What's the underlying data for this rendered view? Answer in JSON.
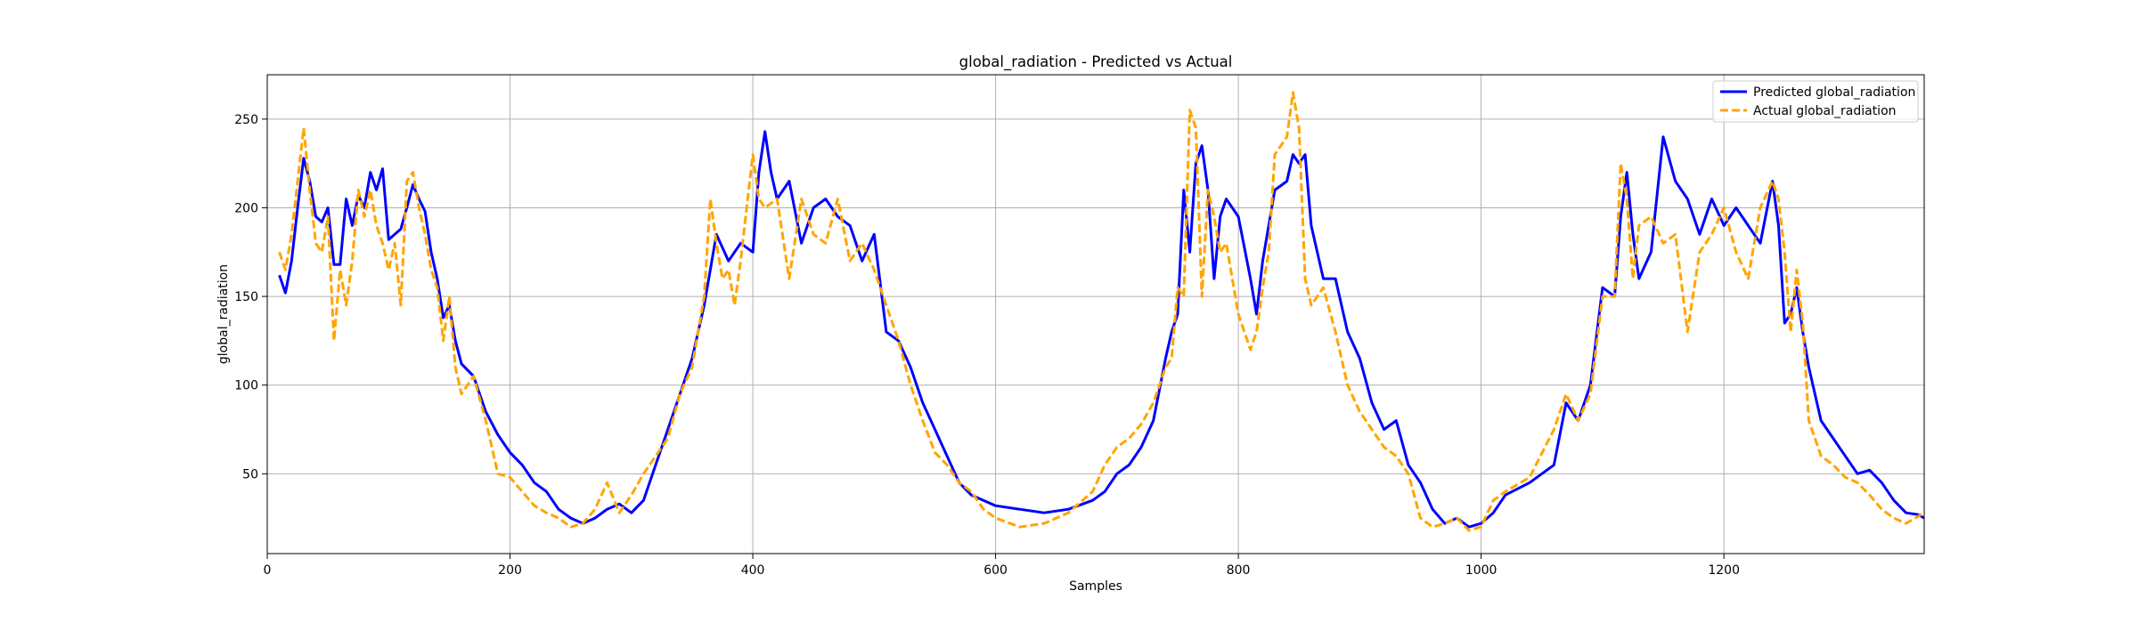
{
  "chart_data": {
    "type": "line",
    "title": "global_radiation - Predicted vs Actual",
    "xlabel": "Samples",
    "ylabel": "global_radiation",
    "xlim": [
      0,
      1365
    ],
    "ylim": [
      5,
      275
    ],
    "xticks": [
      0,
      200,
      400,
      600,
      800,
      1000,
      1200
    ],
    "yticks": [
      50,
      100,
      150,
      200,
      250
    ],
    "grid": true,
    "legend_position": "top-right",
    "series": [
      {
        "name": "Predicted global_radiation",
        "color": "#0000ff",
        "style": "solid",
        "x": [
          10,
          15,
          20,
          25,
          30,
          35,
          40,
          45,
          50,
          55,
          60,
          65,
          70,
          75,
          80,
          85,
          90,
          95,
          100,
          105,
          110,
          115,
          120,
          125,
          130,
          135,
          140,
          145,
          150,
          155,
          160,
          170,
          180,
          190,
          200,
          210,
          220,
          230,
          240,
          250,
          260,
          270,
          280,
          290,
          300,
          310,
          320,
          330,
          340,
          350,
          360,
          370,
          380,
          390,
          400,
          405,
          410,
          415,
          420,
          430,
          440,
          450,
          460,
          470,
          480,
          490,
          500,
          510,
          520,
          530,
          540,
          550,
          560,
          570,
          580,
          590,
          600,
          620,
          640,
          660,
          680,
          690,
          700,
          710,
          720,
          730,
          740,
          745,
          750,
          755,
          760,
          765,
          770,
          775,
          780,
          785,
          790,
          800,
          810,
          815,
          820,
          825,
          830,
          840,
          845,
          850,
          855,
          860,
          870,
          880,
          890,
          900,
          910,
          920,
          930,
          940,
          950,
          960,
          970,
          980,
          990,
          1000,
          1010,
          1020,
          1040,
          1060,
          1070,
          1080,
          1090,
          1100,
          1110,
          1115,
          1120,
          1125,
          1130,
          1140,
          1150,
          1160,
          1170,
          1180,
          1190,
          1200,
          1210,
          1220,
          1230,
          1240,
          1245,
          1250,
          1255,
          1260,
          1265,
          1270,
          1280,
          1290,
          1300,
          1310,
          1320,
          1330,
          1340,
          1350,
          1360,
          1365
        ],
        "y": [
          162,
          152,
          170,
          200,
          228,
          215,
          195,
          192,
          200,
          168,
          168,
          205,
          190,
          207,
          200,
          220,
          210,
          222,
          182,
          185,
          188,
          200,
          213,
          205,
          198,
          175,
          160,
          138,
          145,
          125,
          112,
          105,
          85,
          72,
          62,
          55,
          45,
          40,
          30,
          25,
          22,
          25,
          30,
          33,
          28,
          35,
          55,
          75,
          95,
          115,
          145,
          185,
          170,
          180,
          175,
          220,
          243,
          220,
          205,
          215,
          180,
          200,
          205,
          195,
          190,
          170,
          185,
          130,
          125,
          110,
          90,
          75,
          60,
          45,
          38,
          35,
          32,
          30,
          28,
          30,
          35,
          40,
          50,
          55,
          65,
          80,
          115,
          130,
          140,
          210,
          175,
          225,
          235,
          210,
          160,
          195,
          205,
          195,
          160,
          140,
          170,
          190,
          210,
          215,
          230,
          225,
          230,
          190,
          160,
          160,
          130,
          115,
          90,
          75,
          80,
          55,
          45,
          30,
          22,
          25,
          20,
          22,
          28,
          38,
          45,
          55,
          90,
          80,
          100,
          155,
          150,
          195,
          220,
          185,
          160,
          175,
          240,
          215,
          205,
          185,
          205,
          190,
          200,
          190,
          180,
          215,
          190,
          135,
          140,
          155,
          130,
          110,
          80,
          70,
          60,
          50,
          52,
          45,
          35,
          28,
          27,
          25
        ]
      },
      {
        "name": "Actual global_radiation",
        "color": "#ffa500",
        "style": "dashed",
        "x": [
          10,
          15,
          20,
          25,
          30,
          35,
          40,
          45,
          50,
          55,
          60,
          65,
          70,
          75,
          80,
          85,
          90,
          95,
          100,
          105,
          110,
          115,
          120,
          125,
          130,
          135,
          140,
          145,
          150,
          155,
          160,
          170,
          180,
          190,
          200,
          210,
          220,
          230,
          240,
          250,
          260,
          270,
          280,
          290,
          300,
          310,
          320,
          330,
          340,
          350,
          360,
          365,
          370,
          375,
          380,
          385,
          390,
          395,
          400,
          405,
          410,
          420,
          430,
          440,
          450,
          460,
          470,
          480,
          490,
          500,
          510,
          520,
          530,
          540,
          550,
          560,
          570,
          580,
          590,
          600,
          620,
          640,
          660,
          680,
          690,
          700,
          710,
          720,
          730,
          740,
          745,
          750,
          755,
          760,
          765,
          770,
          775,
          780,
          785,
          790,
          800,
          810,
          815,
          820,
          825,
          830,
          840,
          845,
          850,
          855,
          860,
          870,
          880,
          890,
          900,
          910,
          920,
          930,
          940,
          950,
          960,
          970,
          980,
          990,
          1000,
          1010,
          1020,
          1040,
          1060,
          1070,
          1080,
          1090,
          1100,
          1110,
          1115,
          1120,
          1125,
          1130,
          1140,
          1150,
          1160,
          1170,
          1180,
          1190,
          1200,
          1210,
          1220,
          1230,
          1240,
          1245,
          1250,
          1255,
          1260,
          1265,
          1270,
          1280,
          1290,
          1300,
          1310,
          1320,
          1330,
          1340,
          1350,
          1360,
          1365
        ],
        "y": [
          175,
          165,
          185,
          215,
          245,
          210,
          180,
          175,
          195,
          125,
          165,
          145,
          170,
          210,
          195,
          210,
          190,
          180,
          165,
          180,
          145,
          215,
          220,
          200,
          185,
          165,
          155,
          125,
          150,
          110,
          95,
          105,
          80,
          50,
          48,
          40,
          32,
          28,
          25,
          20,
          22,
          30,
          45,
          28,
          38,
          50,
          60,
          70,
          95,
          110,
          150,
          205,
          180,
          160,
          165,
          145,
          170,
          200,
          230,
          205,
          200,
          205,
          160,
          205,
          185,
          180,
          205,
          170,
          180,
          165,
          145,
          125,
          100,
          80,
          62,
          55,
          45,
          40,
          30,
          25,
          20,
          22,
          28,
          40,
          55,
          65,
          70,
          78,
          90,
          110,
          115,
          155,
          150,
          255,
          245,
          150,
          210,
          195,
          175,
          180,
          140,
          120,
          130,
          155,
          175,
          230,
          240,
          265,
          245,
          160,
          145,
          155,
          130,
          100,
          85,
          75,
          65,
          60,
          50,
          25,
          20,
          22,
          25,
          18,
          20,
          35,
          40,
          48,
          75,
          95,
          80,
          95,
          150,
          150,
          225,
          205,
          160,
          190,
          195,
          180,
          185,
          130,
          175,
          185,
          200,
          175,
          160,
          200,
          215,
          205,
          175,
          130,
          165,
          135,
          80,
          60,
          55,
          48,
          45,
          38,
          30,
          25,
          22,
          26,
          28
        ]
      }
    ]
  }
}
